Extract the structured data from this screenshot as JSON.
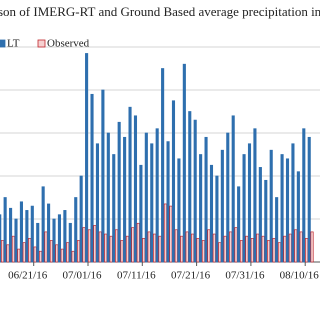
{
  "chart_data": {
    "type": "bar",
    "title": "son of IMERG-RT and Ground Based average precipitation in Gan",
    "categories": [
      null,
      null,
      null,
      null,
      null,
      null,
      "06/21/16",
      null,
      null,
      null,
      null,
      null,
      null,
      null,
      null,
      null,
      "07/01/16",
      null,
      null,
      null,
      null,
      null,
      null,
      null,
      null,
      null,
      "07/11/16",
      null,
      null,
      null,
      null,
      null,
      null,
      null,
      null,
      null,
      "07/21/16",
      null,
      null,
      null,
      null,
      null,
      null,
      null,
      null,
      null,
      "07/31/16",
      null,
      null,
      null,
      null,
      null,
      null,
      null,
      null,
      null,
      "08/10/16",
      null
    ],
    "series": [
      {
        "name": "LT",
        "color": "#2e6fae",
        "values": [
          22,
          30,
          25,
          20,
          28,
          24,
          26,
          18,
          35,
          27,
          20,
          22,
          24,
          18,
          30,
          40,
          97,
          78,
          55,
          80,
          60,
          50,
          65,
          58,
          72,
          68,
          45,
          60,
          55,
          62,
          90,
          56,
          75,
          48,
          92,
          70,
          66,
          50,
          58,
          45,
          40,
          52,
          60,
          68,
          35,
          50,
          55,
          62,
          44,
          38,
          52,
          30,
          50,
          48,
          55,
          42,
          62,
          58
        ]
      },
      {
        "name": "Observed",
        "color": "#c0262d",
        "values": [
          10,
          8,
          12,
          6,
          9,
          11,
          7,
          5,
          14,
          10,
          8,
          6,
          9,
          5,
          10,
          16,
          15,
          17,
          14,
          13,
          12,
          15,
          10,
          12,
          16,
          18,
          11,
          14,
          13,
          12,
          27,
          26,
          15,
          12,
          14,
          13,
          11,
          10,
          15,
          13,
          9,
          12,
          14,
          16,
          10,
          12,
          11,
          13,
          12,
          10,
          11,
          9,
          12,
          13,
          15,
          14,
          11,
          14
        ]
      }
    ],
    "ylim": [
      0,
      100
    ],
    "yticks": [
      0,
      20,
      40,
      60,
      80,
      100
    ],
    "grid": true
  }
}
